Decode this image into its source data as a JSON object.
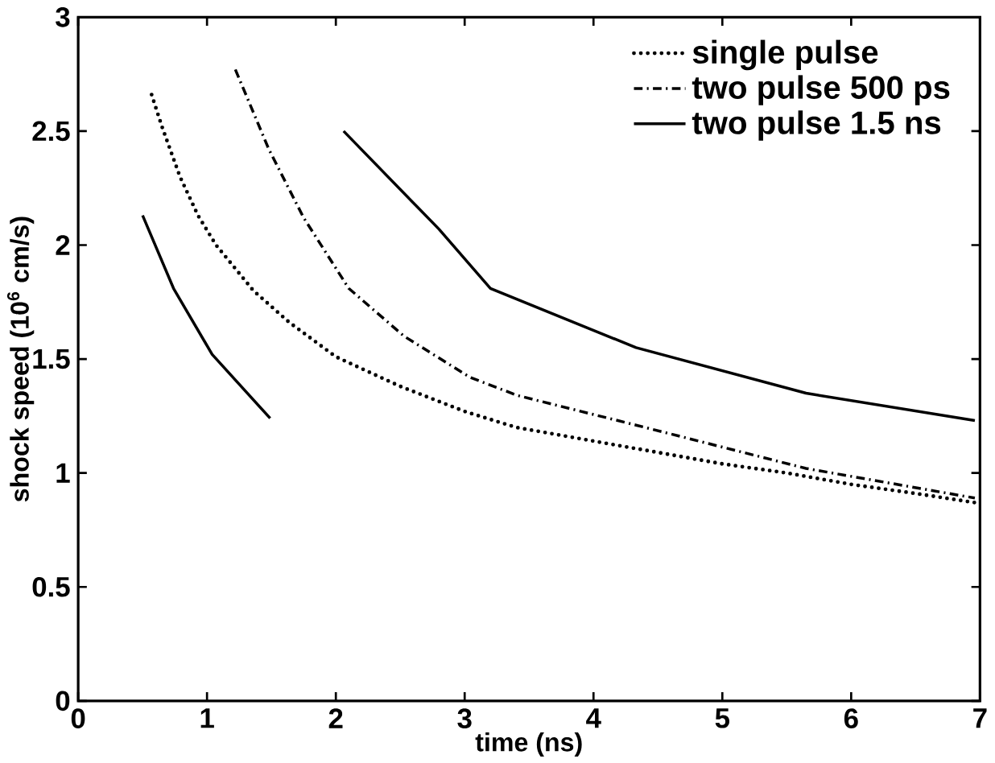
{
  "chart_data": {
    "type": "line",
    "xlabel": "time (ns)",
    "ylabel": "shock speed (10$^{6}$ cm/s)",
    "xlim": [
      0,
      7
    ],
    "ylim": [
      0,
      3
    ],
    "xticks": [
      0,
      1,
      2,
      3,
      4,
      5,
      6,
      7
    ],
    "yticks": [
      0,
      0.5,
      1,
      1.5,
      2,
      2.5,
      3
    ],
    "legend": "top right",
    "grid": false,
    "series": [
      {
        "name": "single pulse",
        "color": "#000000",
        "line_style": "dotted",
        "x": [
          0.57,
          0.65,
          0.79,
          0.93,
          1.07,
          1.36,
          1.64,
          2.0,
          2.5,
          3.0,
          3.4,
          4.0,
          4.5,
          5.0,
          5.5,
          6.0,
          6.5,
          6.96
        ],
        "values": [
          2.66,
          2.52,
          2.3,
          2.13,
          2.0,
          1.8,
          1.66,
          1.51,
          1.38,
          1.27,
          1.2,
          1.14,
          1.09,
          1.04,
          1.0,
          0.95,
          0.91,
          0.87
        ]
      },
      {
        "name": "two pulse 500 ps",
        "color": "#000000",
        "line_style": "dashdot",
        "x": [
          1.22,
          1.48,
          1.75,
          2.1,
          2.53,
          3.04,
          3.41,
          4.33,
          5.65,
          6.96
        ],
        "values": [
          2.77,
          2.42,
          2.12,
          1.81,
          1.6,
          1.42,
          1.34,
          1.21,
          1.02,
          0.89
        ]
      },
      {
        "name": "two pulse 1.5 ns",
        "color": "#000000",
        "line_style": "solid",
        "x": [
          0.5,
          0.74,
          1.04,
          1.49,
          1.8,
          2.06,
          2.8,
          3.2,
          4.33,
          5.65,
          6.96
        ],
        "values": [
          2.13,
          1.81,
          1.52,
          1.24,
          null,
          2.5,
          2.07,
          1.81,
          1.55,
          1.35,
          1.23
        ]
      }
    ]
  }
}
